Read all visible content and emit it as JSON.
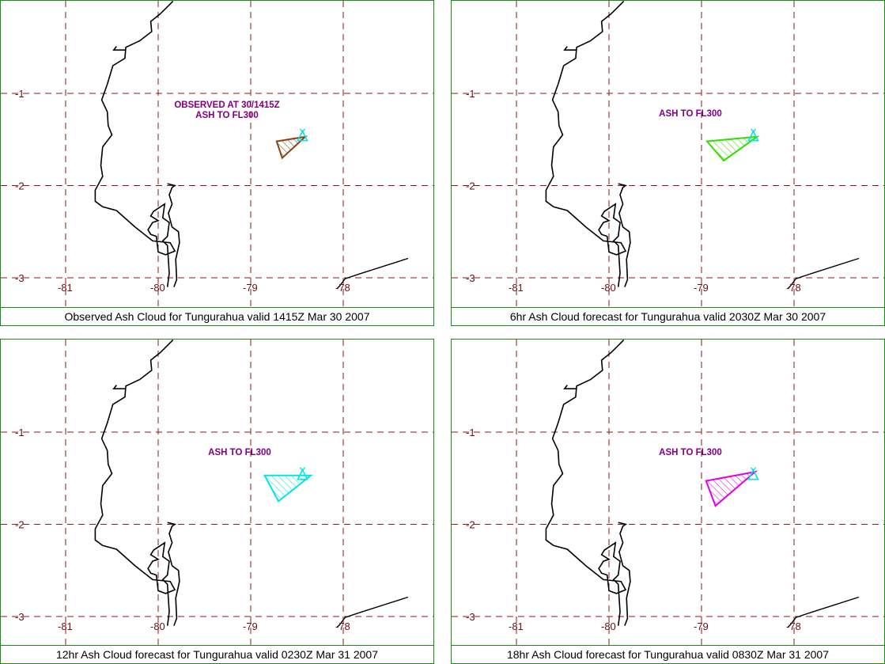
{
  "colors": {
    "border": "#1a8a1a",
    "grid": "#8b1a1a",
    "tick_label": "#6b0f0f",
    "coast": "#000000",
    "annotation": "#800080",
    "volcano": "#00e5e5"
  },
  "panels": [
    {
      "caption": "Observed Ash Cloud for Tungurahua valid 1415Z Mar 30 2007",
      "annotation_lines": [
        "OBSERVED AT 30/1415Z",
        "ASH TO FL300"
      ],
      "cloud_color": "#8b4513",
      "cloud_polygon": [
        [
          -78.41,
          -1.47
        ],
        [
          -78.72,
          -1.52
        ],
        [
          -78.66,
          -1.7
        ]
      ],
      "icon": "ash-cloud-polygon"
    },
    {
      "caption": "6hr Ash Cloud forecast for Tungurahua valid 2030Z Mar 30 2007",
      "annotation_lines": [
        "ASH TO FL300"
      ],
      "cloud_color": "#33dd00",
      "cloud_polygon": [
        [
          -78.4,
          -1.47
        ],
        [
          -78.94,
          -1.52
        ],
        [
          -78.76,
          -1.73
        ]
      ],
      "icon": "ash-cloud-polygon"
    },
    {
      "caption": "12hr Ash Cloud forecast for Tungurahua valid 0230Z Mar 31 2007",
      "annotation_lines": [
        "ASH TO FL300"
      ],
      "cloud_color": "#00e5e5",
      "cloud_polygon": [
        [
          -78.35,
          -1.47
        ],
        [
          -78.85,
          -1.47
        ],
        [
          -78.7,
          -1.75
        ]
      ],
      "icon": "ash-cloud-polygon"
    },
    {
      "caption": "18hr Ash Cloud forecast for Tungurahua valid 0830Z Mar 31 2007",
      "annotation_lines": [
        "ASH TO FL300"
      ],
      "cloud_color": "#e000e0",
      "cloud_polygon": [
        [
          -78.42,
          -1.43
        ],
        [
          -78.95,
          -1.53
        ],
        [
          -78.85,
          -1.8
        ]
      ],
      "icon": "ash-cloud-polygon"
    }
  ],
  "map": {
    "lon_ticks": [
      -81,
      -80,
      -79,
      -78
    ],
    "lon_tick_labels": [
      "-81",
      "-80",
      "-79",
      "-78"
    ],
    "lat_ticks": [
      -1,
      -2,
      -3
    ],
    "lat_tick_labels": [
      "-1",
      "-2",
      "-3"
    ],
    "lon_range": [
      -81.7,
      -77.3
    ],
    "lat_range": [
      -0.02,
      -3.1
    ],
    "volcano": {
      "lon": -78.44,
      "lat": -1.47,
      "icon": "volcano-icon"
    },
    "coastline": [
      [
        -79.84,
        -0.0
      ],
      [
        -79.92,
        -0.08
      ],
      [
        -79.98,
        -0.14
      ],
      [
        -80.08,
        -0.22
      ],
      [
        -80.07,
        -0.33
      ],
      [
        -80.2,
        -0.43
      ],
      [
        -80.35,
        -0.5
      ],
      [
        -80.36,
        -0.62
      ],
      [
        -80.49,
        -0.7
      ],
      [
        -80.55,
        -0.9
      ],
      [
        -80.61,
        -1.07
      ],
      [
        -80.55,
        -1.2
      ],
      [
        -80.54,
        -1.35
      ],
      [
        -80.5,
        -1.45
      ],
      [
        -80.6,
        -1.58
      ],
      [
        -80.62,
        -1.78
      ],
      [
        -80.6,
        -1.9
      ],
      [
        -80.68,
        -2.05
      ],
      [
        -80.68,
        -2.17
      ],
      [
        -80.6,
        -2.23
      ],
      [
        -80.45,
        -2.27
      ],
      [
        -80.25,
        -2.45
      ],
      [
        -80.06,
        -2.6
      ],
      [
        -79.87,
        -2.62
      ],
      [
        -79.82,
        -2.71
      ],
      [
        -79.92,
        -2.75
      ],
      [
        -80.0,
        -2.72
      ],
      [
        -80.02,
        -2.55
      ],
      [
        -80.08,
        -2.53
      ],
      [
        -80.11,
        -2.48
      ],
      [
        -80.06,
        -2.4
      ],
      [
        -80.0,
        -2.38
      ],
      [
        -80.08,
        -2.33
      ],
      [
        -80.05,
        -2.28
      ],
      [
        -79.93,
        -2.2
      ],
      [
        -79.95,
        -2.35
      ],
      [
        -79.88,
        -2.4
      ],
      [
        -79.9,
        -2.55
      ],
      [
        -79.95,
        -2.6
      ],
      [
        -79.9,
        -2.65
      ],
      [
        -79.88,
        -2.95
      ],
      [
        -79.9,
        -3.1
      ]
    ],
    "estuary": [
      [
        -79.9,
        -1.98
      ],
      [
        -79.82,
        -2.0
      ],
      [
        -79.85,
        -2.02
      ],
      [
        -79.88,
        -2.1
      ],
      [
        -79.85,
        -2.2
      ],
      [
        -79.89,
        -2.3
      ],
      [
        -79.85,
        -2.45
      ],
      [
        -79.78,
        -2.5
      ],
      [
        -79.77,
        -2.62
      ],
      [
        -79.81,
        -2.8
      ],
      [
        -79.8,
        -3.02
      ],
      [
        -79.83,
        -3.1
      ]
    ],
    "border_line": [
      [
        -77.3,
        -2.79
      ],
      [
        -77.83,
        -2.96
      ],
      [
        -77.98,
        -3.01
      ],
      [
        -78.04,
        -3.09
      ],
      [
        -78.07,
        -3.12
      ]
    ],
    "hook": [
      [
        -80.45,
        -0.49
      ],
      [
        -80.48,
        -0.53
      ],
      [
        -80.35,
        -0.53
      ]
    ]
  }
}
